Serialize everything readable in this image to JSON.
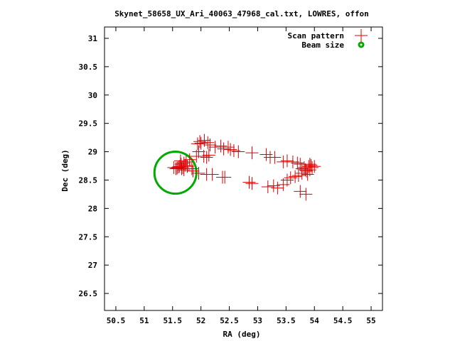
{
  "chart_data": {
    "type": "scatter",
    "title": "Skynet_58658_UX_Ari_40063_47968_cal.txt, LOWRES, offon",
    "xlabel": "RA (deg)",
    "ylabel": "Dec (deg)",
    "xlim": [
      50.3,
      55.2
    ],
    "ylim": [
      26.2,
      31.2
    ],
    "xticks": [
      "50.5",
      "51",
      "51.5",
      "52",
      "52.5",
      "53",
      "53.5",
      "54",
      "54.5",
      "55"
    ],
    "yticks": [
      "26.5",
      "27",
      "27.5",
      "28",
      "28.5",
      "29",
      "29.5",
      "30",
      "30.5",
      "31"
    ],
    "legend_position": "top-right",
    "series": [
      {
        "name": "Scan pattern",
        "color": "#dd0000",
        "marker": "plus",
        "points": [
          [
            51.65,
            28.78
          ],
          [
            51.68,
            28.72
          ],
          [
            51.7,
            28.8
          ],
          [
            51.62,
            28.74
          ],
          [
            51.72,
            28.76
          ],
          [
            51.66,
            28.7
          ],
          [
            51.74,
            28.82
          ],
          [
            51.6,
            28.73
          ],
          [
            51.58,
            28.71
          ],
          [
            51.64,
            28.84
          ],
          [
            51.76,
            28.74
          ],
          [
            51.7,
            28.68
          ],
          [
            51.56,
            28.7
          ],
          [
            51.52,
            28.72
          ],
          [
            51.8,
            28.86
          ],
          [
            51.84,
            28.7
          ],
          [
            51.86,
            28.66
          ],
          [
            51.96,
            28.62
          ],
          [
            52.05,
            28.92
          ],
          [
            52.1,
            28.6
          ],
          [
            52.2,
            28.6
          ],
          [
            51.98,
            29.18
          ],
          [
            52.0,
            29.15
          ],
          [
            52.06,
            29.2
          ],
          [
            51.94,
            29.14
          ],
          [
            52.12,
            29.16
          ],
          [
            52.16,
            29.12
          ],
          [
            51.96,
            29.0
          ],
          [
            51.92,
            28.92
          ],
          [
            52.14,
            28.94
          ],
          [
            52.1,
            28.9
          ],
          [
            52.25,
            29.08
          ],
          [
            52.35,
            29.1
          ],
          [
            52.4,
            29.05
          ],
          [
            52.48,
            29.08
          ],
          [
            52.52,
            29.04
          ],
          [
            52.58,
            29.02
          ],
          [
            52.66,
            29.0
          ],
          [
            52.38,
            28.55
          ],
          [
            52.42,
            28.55
          ],
          [
            52.9,
            28.98
          ],
          [
            53.15,
            28.95
          ],
          [
            53.22,
            28.9
          ],
          [
            53.3,
            28.9
          ],
          [
            53.45,
            28.82
          ],
          [
            53.52,
            28.84
          ],
          [
            53.62,
            28.82
          ],
          [
            53.7,
            28.8
          ],
          [
            53.75,
            28.78
          ],
          [
            53.78,
            28.7
          ],
          [
            53.82,
            28.72
          ],
          [
            53.86,
            28.66
          ],
          [
            53.9,
            28.74
          ],
          [
            53.92,
            28.68
          ],
          [
            53.94,
            28.76
          ],
          [
            53.96,
            28.72
          ],
          [
            54.0,
            28.74
          ],
          [
            53.88,
            28.6
          ],
          [
            53.78,
            28.62
          ],
          [
            53.72,
            28.58
          ],
          [
            53.66,
            28.56
          ],
          [
            53.58,
            28.54
          ],
          [
            53.52,
            28.5
          ],
          [
            53.45,
            28.42
          ],
          [
            53.35,
            28.36
          ],
          [
            53.28,
            28.4
          ],
          [
            53.18,
            28.38
          ],
          [
            52.9,
            28.44
          ],
          [
            52.85,
            28.46
          ],
          [
            53.75,
            28.3
          ],
          [
            53.85,
            28.25
          ],
          [
            53.92,
            28.78
          ],
          [
            53.84,
            28.68
          ]
        ]
      },
      {
        "name": "Beam size",
        "color": "#00aa00",
        "marker": "circle",
        "center": [
          51.55,
          28.63
        ],
        "radius_deg": 0.37
      }
    ]
  }
}
